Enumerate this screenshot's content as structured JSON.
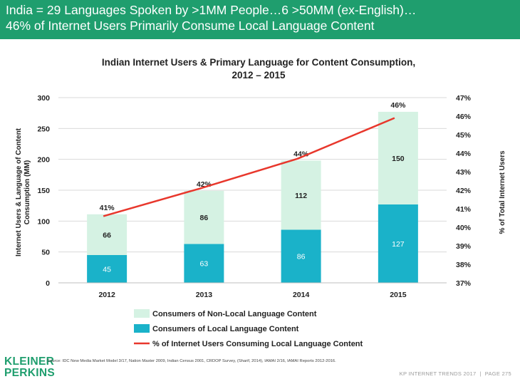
{
  "header": {
    "line1": "India = 29 Languages Spoken by >1MM People…6 >50MM (ex-English)…",
    "line2": "46% of Internet Users Primarily Consume Local Language Content"
  },
  "chart_data": {
    "type": "bar",
    "title_line1": "Indian Internet Users & Primary Language for Content Consumption,",
    "title_line2": "2012 – 2015",
    "categories": [
      "2012",
      "2013",
      "2014",
      "2015"
    ],
    "series": [
      {
        "name": "Consumers of Local Language Content",
        "values": [
          45,
          63,
          86,
          127
        ],
        "color": "#1ab2c9"
      },
      {
        "name": "Consumers of Non-Local Language Content",
        "values": [
          66,
          86,
          112,
          150
        ],
        "color": "#d5f2e3"
      }
    ],
    "line_series": {
      "name": "% of Internet Users Consuming Local Language Content",
      "values": [
        40.6,
        42.1,
        43.7,
        45.9
      ],
      "labels": [
        "41%",
        "42%",
        "44%",
        "46%"
      ],
      "color": "#e8372c"
    },
    "ylabel": "Internet Users & Language of Content Consumption (MM)",
    "ylabel_line1": "Internet Users & Language of Content",
    "ylabel_line2": "Consumption (MM)",
    "y2label": "% of Total Internet Users",
    "ylim": [
      0,
      300
    ],
    "y_ticks": [
      "0",
      "50",
      "100",
      "150",
      "200",
      "250",
      "300"
    ],
    "y2lim": [
      37,
      47
    ],
    "y2_ticks": [
      "37%",
      "38%",
      "39%",
      "40%",
      "41%",
      "42%",
      "43%",
      "44%",
      "45%",
      "46%",
      "47%"
    ],
    "grid": true,
    "legend_position": "bottom",
    "legend_order": [
      1,
      0,
      2
    ]
  },
  "footer": {
    "source": "Source: IDC New Media Market Model 3/17, Nation Master 2009, Indian Census 2001, CRDOP Survey, (Sharif, 2014), IAMAI 2/16, IAMAI Reports 2012-2016.",
    "logo_line1": "KLEINER",
    "logo_line2": "PERKINS",
    "report": "KP INTERNET TRENDS 2017",
    "page": "PAGE 275"
  }
}
